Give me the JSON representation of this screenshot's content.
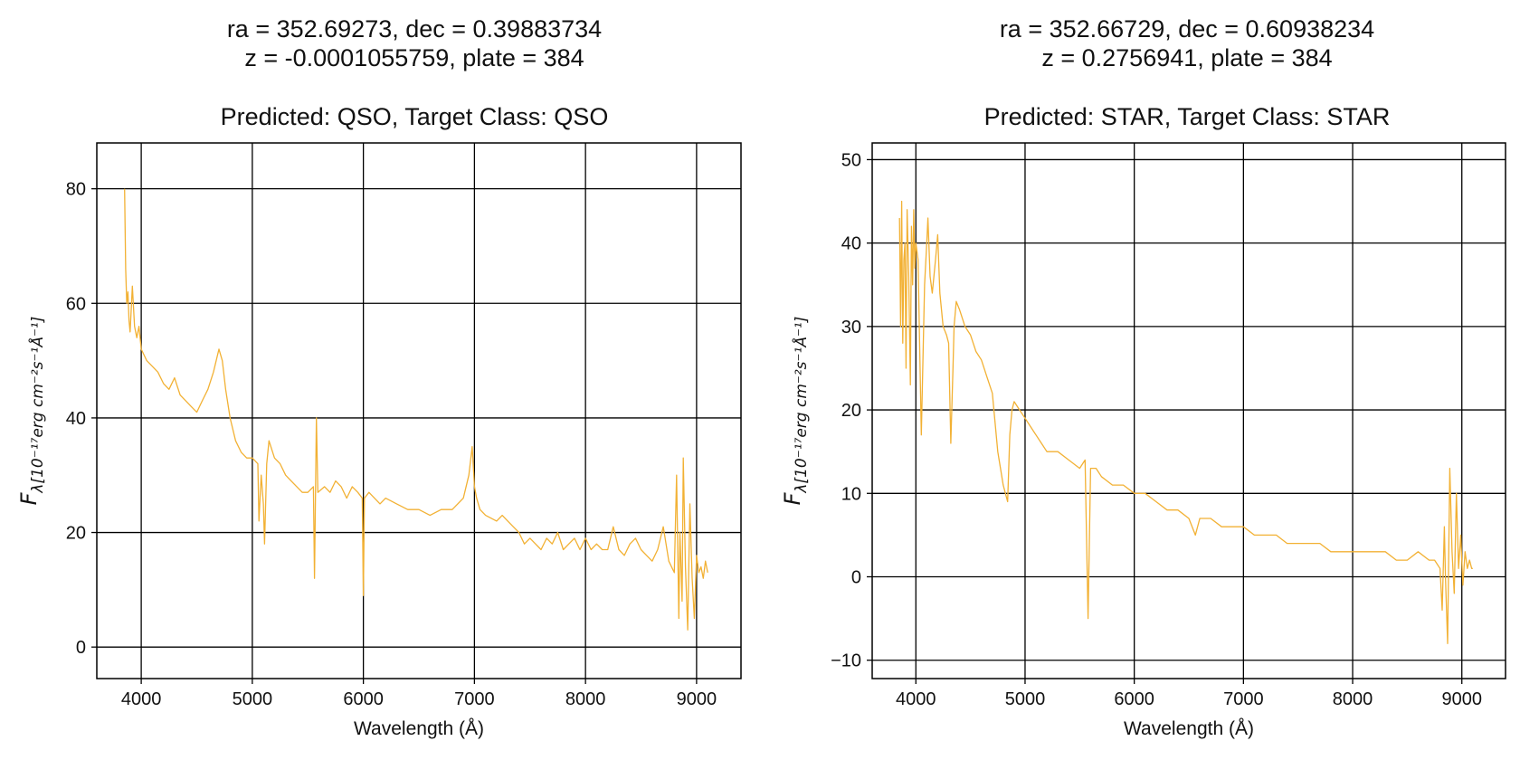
{
  "figure": {
    "background": "#ffffff",
    "line_color": "#f2b134",
    "grid_color": "#000000"
  },
  "chart_data": [
    {
      "type": "line",
      "title_line1": "ra = 352.69273, dec = 0.39883734",
      "title_line2": "z = -0.0001055759, plate = 384",
      "subtitle": "Predicted: QSO, Target Class: QSO",
      "xlabel": "Wavelength (Å)",
      "ylabel": "F",
      "ylabel_sub": "λ[10⁻¹⁷erg cm⁻²s⁻¹Å⁻¹]",
      "xlim": [
        3600,
        9400
      ],
      "ylim": [
        -5.5,
        88
      ],
      "xticks": [
        4000,
        5000,
        6000,
        7000,
        8000,
        9000
      ],
      "yticks": [
        0,
        20,
        40,
        60,
        80
      ],
      "xtick_labels": [
        "4000",
        "5000",
        "6000",
        "7000",
        "8000",
        "9000"
      ],
      "ytick_labels": [
        "0",
        "20",
        "40",
        "60",
        "80"
      ],
      "grid": true,
      "series": [
        {
          "color": "#f2b134",
          "x": [
            3850,
            3860,
            3870,
            3880,
            3890,
            3900,
            3920,
            3940,
            3960,
            3980,
            4000,
            4050,
            4100,
            4150,
            4200,
            4250,
            4300,
            4350,
            4400,
            4450,
            4500,
            4550,
            4600,
            4650,
            4700,
            4730,
            4760,
            4800,
            4850,
            4900,
            4950,
            5000,
            5050,
            5060,
            5080,
            5100,
            5110,
            5130,
            5150,
            5200,
            5250,
            5300,
            5350,
            5400,
            5450,
            5500,
            5550,
            5560,
            5577,
            5590,
            5650,
            5700,
            5750,
            5800,
            5850,
            5900,
            5950,
            5990,
            6000,
            6010,
            6050,
            6100,
            6150,
            6200,
            6300,
            6400,
            6500,
            6600,
            6700,
            6800,
            6900,
            6950,
            6980,
            7000,
            7020,
            7050,
            7100,
            7200,
            7250,
            7300,
            7350,
            7400,
            7450,
            7500,
            7550,
            7600,
            7650,
            7700,
            7750,
            7800,
            7850,
            7900,
            7950,
            8000,
            8050,
            8100,
            8150,
            8200,
            8250,
            8300,
            8350,
            8400,
            8450,
            8500,
            8550,
            8600,
            8650,
            8700,
            8750,
            8800,
            8820,
            8840,
            8850,
            8870,
            8880,
            8900,
            8920,
            8940,
            8960,
            8980,
            9000,
            9020,
            9040,
            9060,
            9080,
            9100
          ],
          "y": [
            80,
            66,
            60,
            62,
            57,
            55,
            63,
            56,
            54,
            56,
            52,
            50,
            49,
            48,
            46,
            45,
            47,
            44,
            43,
            42,
            41,
            43,
            45,
            48,
            52,
            50,
            45,
            40,
            36,
            34,
            33,
            33,
            32,
            22,
            30,
            25,
            18,
            32,
            36,
            33,
            32,
            30,
            29,
            28,
            27,
            27,
            28,
            12,
            40,
            27,
            28,
            27,
            29,
            28,
            26,
            28,
            27,
            26,
            9,
            26,
            27,
            26,
            25,
            26,
            25,
            24,
            24,
            23,
            24,
            24,
            26,
            30,
            35,
            28,
            26,
            24,
            23,
            22,
            23,
            22,
            21,
            20,
            18,
            19,
            18,
            17,
            19,
            18,
            20,
            17,
            18,
            19,
            17,
            19,
            17,
            18,
            17,
            17,
            21,
            17,
            16,
            18,
            19,
            17,
            16,
            15,
            17,
            21,
            15,
            13,
            30,
            5,
            20,
            8,
            33,
            14,
            3,
            25,
            12,
            5,
            16,
            13,
            14,
            12,
            15,
            13
          ]
        }
      ]
    },
    {
      "type": "line",
      "title_line1": "ra = 352.66729, dec = 0.60938234",
      "title_line2": "z = 0.2756941, plate = 384",
      "subtitle": "Predicted: STAR, Target Class: STAR",
      "xlabel": "Wavelength (Å)",
      "ylabel": "F",
      "ylabel_sub": "λ[10⁻¹⁷erg cm⁻²s⁻¹Å⁻¹]",
      "xlim": [
        3600,
        9400
      ],
      "ylim": [
        -12.2,
        52
      ],
      "xticks": [
        4000,
        5000,
        6000,
        7000,
        8000,
        9000
      ],
      "yticks": [
        -10,
        0,
        10,
        20,
        30,
        40,
        50
      ],
      "xtick_labels": [
        "4000",
        "5000",
        "6000",
        "7000",
        "8000",
        "9000"
      ],
      "ytick_labels": [
        "−10",
        "0",
        "10",
        "20",
        "30",
        "40",
        "50"
      ],
      "grid": true,
      "series": [
        {
          "color": "#f2b134",
          "x": [
            3850,
            3860,
            3870,
            3880,
            3890,
            3900,
            3910,
            3920,
            3935,
            3950,
            3960,
            3970,
            3980,
            3990,
            4000,
            4020,
            4050,
            4080,
            4100,
            4110,
            4130,
            4150,
            4180,
            4200,
            4220,
            4250,
            4280,
            4300,
            4320,
            4340,
            4350,
            4370,
            4400,
            4450,
            4500,
            4550,
            4600,
            4650,
            4700,
            4750,
            4800,
            4840,
            4860,
            4880,
            4900,
            4950,
            5000,
            5050,
            5100,
            5150,
            5200,
            5300,
            5400,
            5500,
            5550,
            5577,
            5600,
            5650,
            5700,
            5800,
            5900,
            6000,
            6100,
            6200,
            6300,
            6400,
            6500,
            6560,
            6600,
            6700,
            6800,
            6900,
            7000,
            7100,
            7200,
            7300,
            7400,
            7500,
            7600,
            7700,
            7800,
            7900,
            8000,
            8100,
            8200,
            8300,
            8400,
            8500,
            8600,
            8700,
            8750,
            8800,
            8820,
            8840,
            8850,
            8870,
            8890,
            8910,
            8930,
            8950,
            8970,
            8990,
            9010,
            9030,
            9050,
            9070,
            9090,
            9100
          ],
          "y": [
            43,
            30,
            45,
            28,
            38,
            40,
            25,
            44,
            36,
            23,
            42,
            35,
            44,
            37,
            40,
            38,
            17,
            35,
            40,
            43,
            36,
            34,
            38,
            41,
            34,
            30,
            29,
            28,
            16,
            25,
            30,
            33,
            32,
            30,
            29,
            27,
            26,
            24,
            22,
            15,
            11,
            9,
            17,
            20,
            21,
            20,
            19,
            18,
            17,
            16,
            15,
            15,
            14,
            13,
            14,
            -5,
            13,
            13,
            12,
            11,
            11,
            10,
            10,
            9,
            8,
            8,
            7,
            5,
            7,
            7,
            6,
            6,
            6,
            5,
            5,
            5,
            4,
            4,
            4,
            4,
            3,
            3,
            3,
            3,
            3,
            3,
            2,
            2,
            3,
            2,
            2,
            1,
            -4,
            6,
            0,
            -8,
            13,
            3,
            -2,
            10,
            1,
            5,
            -1,
            3,
            1,
            2,
            1,
            1
          ]
        }
      ]
    }
  ]
}
